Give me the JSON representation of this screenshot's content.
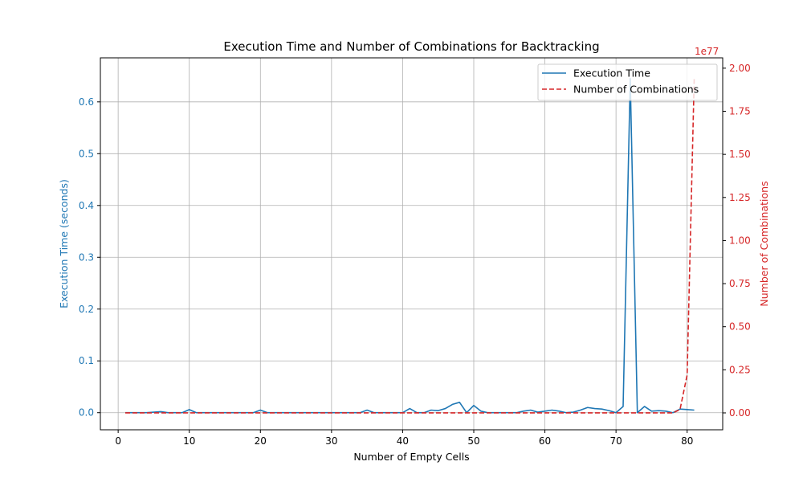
{
  "chart_data": {
    "type": "line",
    "title": "Execution Time and Number of Combinations for Backtracking",
    "xlabel": "Number of Empty Cells",
    "ylabel_left": "Execution Time (seconds)",
    "ylabel_right": "Number of Combinations",
    "right_axis_offset_label": "1e77",
    "xlim": [
      -2.5,
      85
    ],
    "ylim_left": [
      -0.033,
      0.685
    ],
    "ylim_right": [
      -0.098,
      2.06
    ],
    "x_ticks": [
      0,
      10,
      20,
      30,
      40,
      50,
      60,
      70,
      80
    ],
    "y_ticks_left": [
      0.0,
      0.1,
      0.2,
      0.3,
      0.4,
      0.5,
      0.6
    ],
    "y_tick_labels_left": [
      "0.0",
      "0.1",
      "0.2",
      "0.3",
      "0.4",
      "0.5",
      "0.6"
    ],
    "y_ticks_right": [
      0.0,
      0.25,
      0.5,
      0.75,
      1.0,
      1.25,
      1.5,
      1.75,
      2.0
    ],
    "y_tick_labels_right": [
      "0.00",
      "0.25",
      "0.50",
      "0.75",
      "1.00",
      "1.25",
      "1.50",
      "1.75",
      "2.00"
    ],
    "grid": true,
    "legend_position": "top-right",
    "colors": {
      "left": "#1f77b4",
      "right": "#d62728",
      "grid": "#b0b0b0",
      "text": "#000000"
    },
    "series": [
      {
        "name": "Execution Time",
        "axis": "left",
        "style": "solid",
        "color": "#1f77b4",
        "x": [
          1,
          2,
          3,
          4,
          5,
          6,
          7,
          8,
          9,
          10,
          11,
          12,
          13,
          14,
          15,
          16,
          17,
          18,
          19,
          20,
          21,
          22,
          23,
          24,
          25,
          26,
          27,
          28,
          29,
          30,
          31,
          32,
          33,
          34,
          35,
          36,
          37,
          38,
          39,
          40,
          41,
          42,
          43,
          44,
          45,
          46,
          47,
          48,
          49,
          50,
          51,
          52,
          53,
          54,
          55,
          56,
          57,
          58,
          59,
          60,
          61,
          62,
          63,
          64,
          65,
          66,
          67,
          68,
          69,
          70,
          71,
          72,
          73,
          74,
          75,
          76,
          77,
          78,
          79,
          80,
          81
        ],
        "y": [
          0.0,
          0.0,
          0.0,
          0.0,
          0.001,
          0.002,
          0.0,
          0.0,
          0.0,
          0.006,
          0.0,
          0.0,
          0.0,
          0.0,
          0.0,
          0.0,
          0.0,
          0.0,
          0.0,
          0.005,
          0.0,
          0.0,
          0.0,
          0.0,
          0.0,
          0.0,
          0.0,
          0.0,
          0.0,
          0.0,
          0.0,
          0.0,
          0.0,
          0.0,
          0.005,
          0.0,
          0.0,
          0.0,
          0.0,
          0.0,
          0.008,
          0.0,
          0.0,
          0.005,
          0.004,
          0.008,
          0.016,
          0.02,
          0.0,
          0.014,
          0.003,
          0.0,
          0.0,
          0.0,
          0.0,
          0.0,
          0.003,
          0.005,
          0.001,
          0.003,
          0.005,
          0.003,
          0.0,
          0.001,
          0.005,
          0.01,
          0.008,
          0.007,
          0.004,
          0.0,
          0.012,
          0.645,
          0.0,
          0.012,
          0.003,
          0.004,
          0.003,
          0.0,
          0.007,
          0.006,
          0.005
        ]
      },
      {
        "name": "Number of Combinations",
        "axis": "right",
        "style": "dashed",
        "color": "#d62728",
        "x": [
          1,
          10,
          20,
          30,
          40,
          50,
          60,
          70,
          76,
          77,
          78,
          79,
          80,
          81
        ],
        "y": [
          0.0,
          0.0,
          0.0,
          0.0,
          0.0,
          0.0,
          0.0,
          0.0,
          0.0,
          0.0,
          0.0,
          0.02,
          0.22,
          1.95
        ]
      }
    ]
  }
}
